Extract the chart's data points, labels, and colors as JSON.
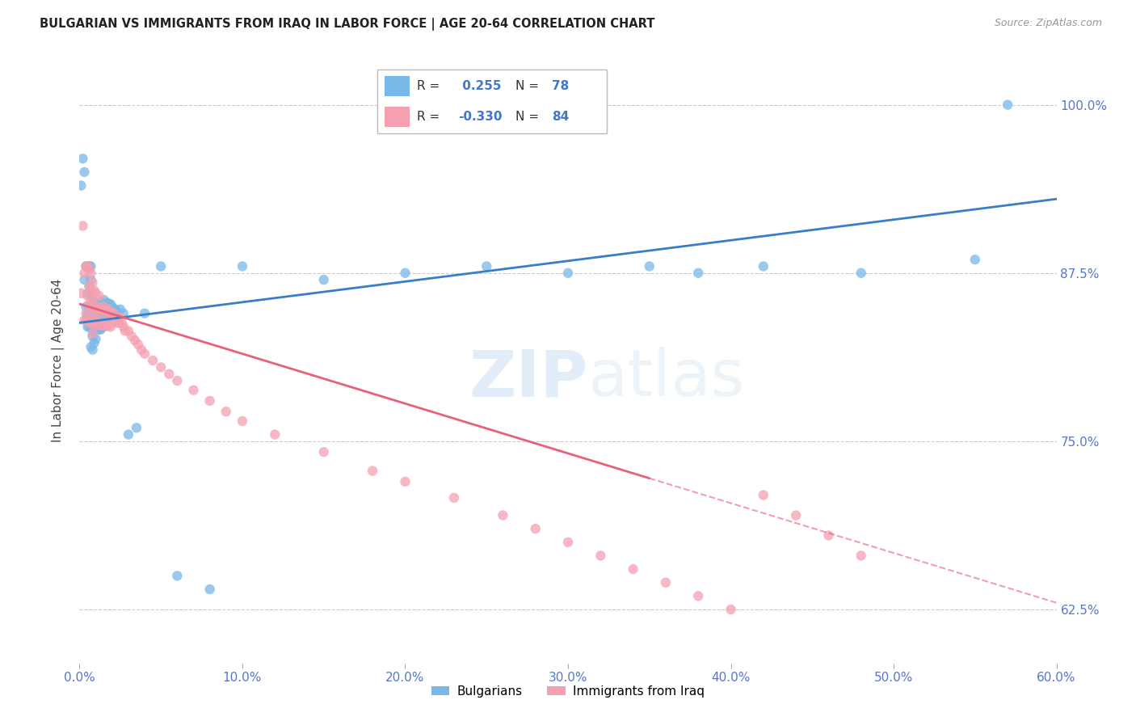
{
  "title": "BULGARIAN VS IMMIGRANTS FROM IRAQ IN LABOR FORCE | AGE 20-64 CORRELATION CHART",
  "source": "Source: ZipAtlas.com",
  "ylabel": "In Labor Force | Age 20-64",
  "r_bulgarian": 0.255,
  "n_bulgarian": 78,
  "r_iraq": -0.33,
  "n_iraq": 84,
  "xlim": [
    0.0,
    0.6
  ],
  "ylim": [
    0.585,
    1.035
  ],
  "xtick_labels": [
    "0.0%",
    "10.0%",
    "20.0%",
    "30.0%",
    "40.0%",
    "50.0%",
    "60.0%"
  ],
  "xtick_values": [
    0.0,
    0.1,
    0.2,
    0.3,
    0.4,
    0.5,
    0.6
  ],
  "ytick_labels": [
    "62.5%",
    "75.0%",
    "87.5%",
    "100.0%"
  ],
  "ytick_values": [
    0.625,
    0.75,
    0.875,
    1.0
  ],
  "color_bulgarian": "#7ab8e8",
  "color_iraq": "#f4a0b0",
  "color_trendline_bulgarian": "#3a7ec8",
  "color_trendline_iraq": "#e8607a",
  "legend_label_bulgarian": "Bulgarians",
  "legend_label_iraq": "Immigrants from Iraq",
  "bulgarian_x": [
    0.001,
    0.002,
    0.003,
    0.003,
    0.004,
    0.004,
    0.004,
    0.005,
    0.005,
    0.005,
    0.005,
    0.006,
    0.006,
    0.006,
    0.006,
    0.007,
    0.007,
    0.007,
    0.007,
    0.007,
    0.007,
    0.008,
    0.008,
    0.008,
    0.008,
    0.008,
    0.009,
    0.009,
    0.009,
    0.009,
    0.01,
    0.01,
    0.01,
    0.01,
    0.011,
    0.011,
    0.011,
    0.012,
    0.012,
    0.012,
    0.013,
    0.013,
    0.013,
    0.014,
    0.014,
    0.015,
    0.015,
    0.015,
    0.016,
    0.016,
    0.017,
    0.017,
    0.018,
    0.018,
    0.019,
    0.02,
    0.021,
    0.022,
    0.023,
    0.025,
    0.027,
    0.03,
    0.035,
    0.04,
    0.05,
    0.06,
    0.08,
    0.1,
    0.15,
    0.2,
    0.25,
    0.3,
    0.35,
    0.38,
    0.42,
    0.48,
    0.55,
    0.57
  ],
  "bulgarian_y": [
    0.94,
    0.96,
    0.87,
    0.95,
    0.88,
    0.85,
    0.84,
    0.88,
    0.86,
    0.845,
    0.835,
    0.88,
    0.865,
    0.85,
    0.835,
    0.88,
    0.87,
    0.858,
    0.845,
    0.835,
    0.82,
    0.855,
    0.848,
    0.838,
    0.828,
    0.818,
    0.852,
    0.843,
    0.833,
    0.823,
    0.853,
    0.845,
    0.836,
    0.826,
    0.852,
    0.844,
    0.834,
    0.852,
    0.843,
    0.833,
    0.853,
    0.843,
    0.833,
    0.852,
    0.843,
    0.855,
    0.845,
    0.835,
    0.852,
    0.842,
    0.853,
    0.843,
    0.852,
    0.842,
    0.852,
    0.85,
    0.848,
    0.848,
    0.845,
    0.848,
    0.845,
    0.755,
    0.76,
    0.845,
    0.88,
    0.65,
    0.64,
    0.88,
    0.87,
    0.875,
    0.88,
    0.875,
    0.88,
    0.875,
    0.88,
    0.875,
    0.885,
    1.0
  ],
  "iraq_x": [
    0.001,
    0.002,
    0.003,
    0.003,
    0.004,
    0.004,
    0.005,
    0.005,
    0.005,
    0.006,
    0.006,
    0.006,
    0.006,
    0.007,
    0.007,
    0.007,
    0.007,
    0.008,
    0.008,
    0.008,
    0.008,
    0.009,
    0.009,
    0.009,
    0.01,
    0.01,
    0.01,
    0.011,
    0.011,
    0.012,
    0.012,
    0.013,
    0.013,
    0.014,
    0.014,
    0.015,
    0.015,
    0.016,
    0.016,
    0.017,
    0.018,
    0.018,
    0.019,
    0.019,
    0.02,
    0.021,
    0.022,
    0.023,
    0.024,
    0.025,
    0.026,
    0.027,
    0.028,
    0.03,
    0.032,
    0.034,
    0.036,
    0.038,
    0.04,
    0.045,
    0.05,
    0.055,
    0.06,
    0.07,
    0.08,
    0.09,
    0.1,
    0.12,
    0.15,
    0.18,
    0.2,
    0.23,
    0.26,
    0.28,
    0.3,
    0.32,
    0.34,
    0.36,
    0.38,
    0.4,
    0.42,
    0.44,
    0.46,
    0.48
  ],
  "iraq_y": [
    0.86,
    0.91,
    0.875,
    0.84,
    0.88,
    0.845,
    0.88,
    0.858,
    0.84,
    0.878,
    0.865,
    0.852,
    0.838,
    0.875,
    0.862,
    0.85,
    0.838,
    0.868,
    0.855,
    0.843,
    0.83,
    0.862,
    0.85,
    0.838,
    0.86,
    0.848,
    0.836,
    0.85,
    0.838,
    0.858,
    0.845,
    0.848,
    0.836,
    0.848,
    0.836,
    0.85,
    0.838,
    0.848,
    0.836,
    0.845,
    0.848,
    0.836,
    0.845,
    0.835,
    0.845,
    0.845,
    0.842,
    0.838,
    0.838,
    0.842,
    0.838,
    0.835,
    0.832,
    0.832,
    0.828,
    0.825,
    0.822,
    0.818,
    0.815,
    0.81,
    0.805,
    0.8,
    0.795,
    0.788,
    0.78,
    0.772,
    0.765,
    0.755,
    0.742,
    0.728,
    0.72,
    0.708,
    0.695,
    0.685,
    0.675,
    0.665,
    0.655,
    0.645,
    0.635,
    0.625,
    0.71,
    0.695,
    0.68,
    0.665
  ],
  "trendline_x_start": 0.0,
  "trendline_x_end": 0.6,
  "bulgarian_trend_y0": 0.838,
  "bulgarian_trend_y1": 0.93,
  "iraq_trend_y0": 0.852,
  "iraq_trend_y1": 0.63
}
